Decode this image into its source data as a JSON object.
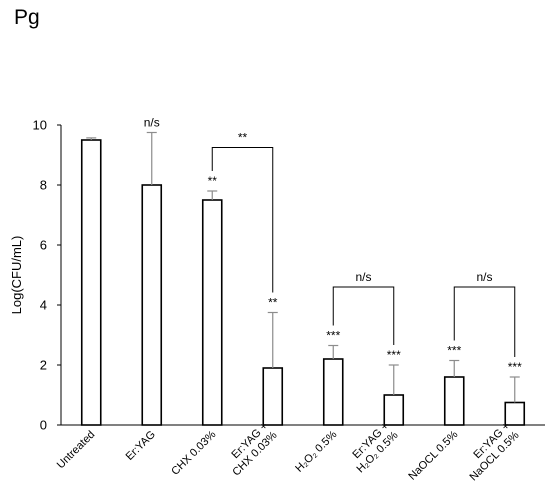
{
  "panel_label": "Pg",
  "chart_data": {
    "type": "bar",
    "title": "",
    "xlabel": "",
    "ylabel": "Log(CFU/mL)",
    "ylim": [
      0,
      10
    ],
    "yticks": [
      0,
      2,
      4,
      6,
      8,
      10
    ],
    "grid": false,
    "bar_fill": "#ffffff",
    "bar_stroke": "#000000",
    "error_color": "#8c8c8c",
    "categories": [
      [
        "Untreated"
      ],
      [
        "Er:YAG"
      ],
      [
        "CHX  0.03%"
      ],
      [
        "Er:YAG +",
        "CHX  0.03%"
      ],
      [
        "H₂O₂ 0.5%"
      ],
      [
        "Er:YAG +",
        "H₂O₂ 0.5%"
      ],
      [
        "NaOCL 0.5%"
      ],
      [
        "Er:YAG +",
        "NaOCL 0.5%"
      ]
    ],
    "values": [
      9.5,
      8.0,
      7.5,
      1.9,
      2.2,
      1.0,
      1.6,
      0.75
    ],
    "errors": [
      0.07,
      1.75,
      0.3,
      1.85,
      0.45,
      1.0,
      0.55,
      0.85
    ],
    "significance": [
      "",
      "n/s",
      "**",
      "**",
      "***",
      "***",
      "***",
      "***"
    ],
    "comparisons": [
      {
        "from": 2,
        "to": 3,
        "label": "**",
        "y": 9.25
      },
      {
        "from": 4,
        "to": 5,
        "label": "n/s",
        "y": 4.6
      },
      {
        "from": 6,
        "to": 7,
        "label": "n/s",
        "y": 4.6
      }
    ]
  }
}
